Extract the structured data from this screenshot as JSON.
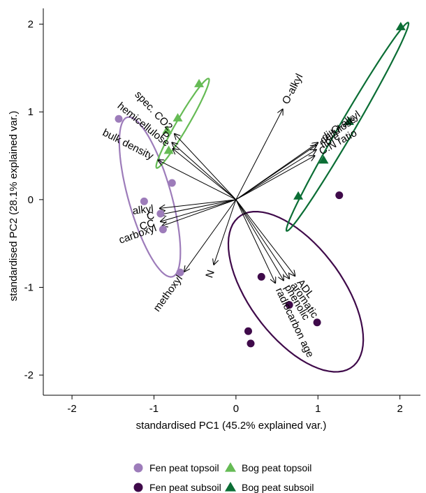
{
  "chart_data": {
    "type": "scatter",
    "subtype": "PCA biplot",
    "xlabel": "standardised PC1 (45.2% explained var.)",
    "ylabel": "standardised PC2 (28.1% explained var.)",
    "xlim": [
      -2.35,
      2.25
    ],
    "ylim": [
      -2.23,
      2.18
    ],
    "xticks": [
      -2,
      -1,
      0,
      1,
      2
    ],
    "yticks": [
      -2,
      -1,
      0,
      1,
      2
    ],
    "grid": false,
    "legend_position": "bottom",
    "colors": {
      "fen_topsoil": "#9d7cba",
      "fen_subsoil": "#3f0a4a",
      "bog_topsoil": "#66bb55",
      "bog_subsoil": "#0b6e35",
      "arrow": "#000000"
    },
    "series": [
      {
        "name": "Fen peat topsoil",
        "marker": "circle",
        "color": "#9d7cba",
        "points": [
          [
            -1.43,
            0.92
          ],
          [
            -0.78,
            0.19
          ],
          [
            -1.12,
            -0.02
          ],
          [
            -0.92,
            -0.16
          ],
          [
            -0.89,
            -0.34
          ],
          [
            -0.68,
            -0.83
          ]
        ],
        "ellipse": {
          "cx": -1.05,
          "cy": 0.03,
          "rx": 0.95,
          "ry": 0.26,
          "angle_deg": -73
        }
      },
      {
        "name": "Fen peat subsoil",
        "marker": "circle",
        "color": "#3f0a4a",
        "points": [
          [
            1.26,
            0.05
          ],
          [
            0.31,
            -0.88
          ],
          [
            0.65,
            -1.2
          ],
          [
            0.99,
            -1.4
          ],
          [
            0.15,
            -1.5
          ],
          [
            0.18,
            -1.64
          ]
        ],
        "ellipse": {
          "cx": 0.73,
          "cy": -1.05,
          "rx": 1.1,
          "ry": 0.55,
          "angle_deg": -50
        }
      },
      {
        "name": "Bog peat topsoil",
        "marker": "triangle",
        "color": "#66bb55",
        "points": [
          [
            -0.45,
            1.32
          ],
          [
            -0.71,
            0.93
          ],
          [
            -0.84,
            0.79
          ],
          [
            -0.82,
            0.56
          ]
        ],
        "ellipse": {
          "cx": -0.65,
          "cy": 0.87,
          "rx": 0.6,
          "ry": 0.07,
          "angle_deg": 58
        }
      },
      {
        "name": "Bog peat subsoil",
        "marker": "triangle",
        "color": "#0b6e35",
        "points": [
          [
            2.01,
            1.97
          ],
          [
            1.38,
            0.89
          ],
          [
            1.07,
            0.45
          ],
          [
            0.76,
            0.04
          ]
        ],
        "ellipse": {
          "cx": 1.36,
          "cy": 0.83,
          "rx": 1.4,
          "ry": 0.09,
          "angle_deg": 58
        }
      }
    ],
    "loadings": [
      {
        "name": "O-alkyl",
        "x": 0.57,
        "y": 1.03
      },
      {
        "name": "di-O-alkyl",
        "x": 1.0,
        "y": 0.65
      },
      {
        "name": "fibre",
        "x": 0.98,
        "y": 0.57
      },
      {
        "name": "C:N ratio",
        "x": 0.96,
        "y": 0.5
      },
      {
        "name": "cellulose",
        "x": 0.98,
        "y": 0.62
      },
      {
        "name": "spec. CO2",
        "x": -0.75,
        "y": 0.75
      },
      {
        "name": "P",
        "x": -0.78,
        "y": 0.65
      },
      {
        "name": "hemicellulose",
        "x": -0.77,
        "y": 0.58
      },
      {
        "name": "bulk density",
        "x": -0.95,
        "y": 0.45
      },
      {
        "name": "alkyl",
        "x": -0.93,
        "y": -0.1
      },
      {
        "name": "C",
        "x": -0.92,
        "y": -0.17
      },
      {
        "name": "CC",
        "x": -0.92,
        "y": -0.25
      },
      {
        "name": "carboxyl",
        "x": -0.9,
        "y": -0.3
      },
      {
        "name": "methoxyl",
        "x": -0.63,
        "y": -0.82
      },
      {
        "name": "N",
        "x": -0.27,
        "y": -0.74
      },
      {
        "name": "ADL",
        "x": 0.72,
        "y": -0.87
      },
      {
        "name": "aromatic",
        "x": 0.65,
        "y": -0.9
      },
      {
        "name": "phenolic",
        "x": 0.58,
        "y": -0.92
      },
      {
        "name": "radiocarbon age",
        "x": 0.48,
        "y": -0.95
      }
    ]
  }
}
